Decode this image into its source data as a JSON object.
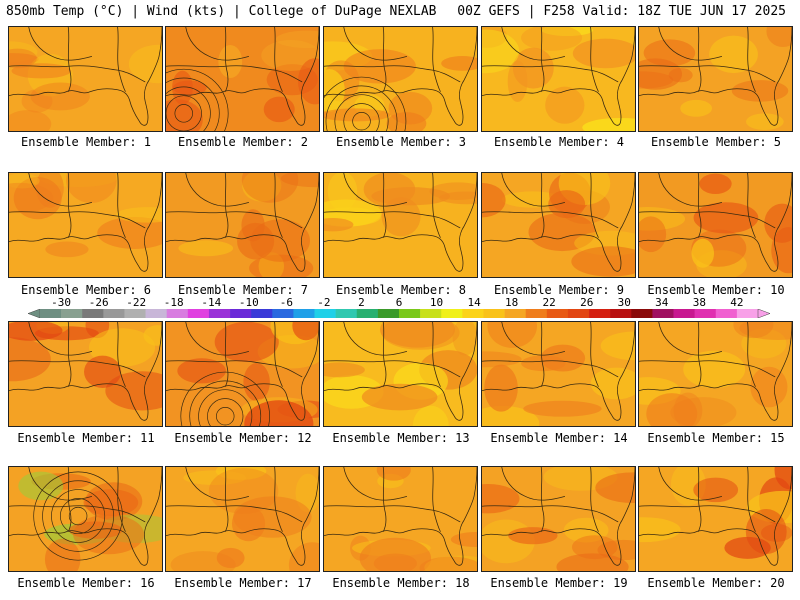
{
  "header": {
    "left": "850mb Temp (°C) | Wind (kts) | College of DuPage NEXLAB",
    "right": "00Z GEFS | F258 Valid: 18Z TUE JUN 17 2025"
  },
  "caption_prefix": "Ensemble Member: ",
  "members": [
    {
      "n": "1",
      "base": "#f5a623",
      "hot": "#ef7d1c",
      "alt": "#f9c21a"
    },
    {
      "n": "2",
      "base": "#f08a1e",
      "hot": "#e85a14",
      "alt": "#f5a623",
      "low": true
    },
    {
      "n": "3",
      "base": "#f7b21f",
      "hot": "#ef7d1c",
      "alt": "#fbd31a",
      "low": true
    },
    {
      "n": "4",
      "base": "#f8b81f",
      "hot": "#f29320",
      "alt": "#fbe41a"
    },
    {
      "n": "5",
      "base": "#f4a224",
      "hot": "#ea6a16",
      "alt": "#f9c21a"
    },
    {
      "n": "6",
      "base": "#f6a922",
      "hot": "#ef7d1c",
      "alt": "#f9c21a"
    },
    {
      "n": "7",
      "base": "#f29a22",
      "hot": "#ea6a16",
      "alt": "#f9c21a"
    },
    {
      "n": "8",
      "base": "#f7b21f",
      "hot": "#ef8a1e",
      "alt": "#fbd31a"
    },
    {
      "n": "9",
      "base": "#f5a623",
      "hot": "#ea6a16",
      "alt": "#f9c21a"
    },
    {
      "n": "10",
      "base": "#f29a22",
      "hot": "#e85a14",
      "alt": "#f9c21a"
    },
    {
      "n": "11",
      "base": "#f4a224",
      "hot": "#e24612",
      "alt": "#f9c21a"
    },
    {
      "n": "12",
      "base": "#f29322",
      "hot": "#e24612",
      "alt": "#f9c21a",
      "low": true
    },
    {
      "n": "13",
      "base": "#f8bb1f",
      "hot": "#ef8a1e",
      "alt": "#fbe41a"
    },
    {
      "n": "14",
      "base": "#f5a623",
      "hot": "#ef7d1c",
      "alt": "#f9c21a"
    },
    {
      "n": "15",
      "base": "#f5a623",
      "hot": "#ef7d1c",
      "alt": "#f9c21a"
    },
    {
      "n": "16",
      "base": "#f4a224",
      "hot": "#ea6a16",
      "alt": "#9ccc3a",
      "low": true
    },
    {
      "n": "17",
      "base": "#f5a623",
      "hot": "#ef7d1c",
      "alt": "#f9c21a"
    },
    {
      "n": "18",
      "base": "#f5a623",
      "hot": "#ef7d1c",
      "alt": "#f9c21a"
    },
    {
      "n": "19",
      "base": "#f4a224",
      "hot": "#ea6a16",
      "alt": "#f9c21a"
    },
    {
      "n": "20",
      "base": "#f5a623",
      "hot": "#e24612",
      "alt": "#f9c21a"
    }
  ],
  "colorbar": {
    "labels": [
      "-30",
      "-26",
      "-22",
      "-18",
      "-14",
      "-10",
      "-6",
      "-2",
      "2",
      "6",
      "10",
      "14",
      "18",
      "22",
      "26",
      "30",
      "34",
      "38",
      "42"
    ],
    "colors": [
      "#6e8f82",
      "#88a090",
      "#7a7a7a",
      "#999999",
      "#b0b0b0",
      "#c8b6d8",
      "#d87ce0",
      "#e040e0",
      "#9a32d8",
      "#6a2ad8",
      "#3a3ad8",
      "#2a6ae0",
      "#20a0e8",
      "#20d0e8",
      "#30c8b0",
      "#28b070",
      "#3a9a2a",
      "#7ac81a",
      "#c8e01a",
      "#f0f01a",
      "#fbd31a",
      "#f9c21a",
      "#f5a623",
      "#ef7d1c",
      "#e85a14",
      "#e24612",
      "#d42010",
      "#b81010",
      "#8a0a0a",
      "#a01060",
      "#c81890",
      "#e030b0",
      "#f060d0",
      "#f8a0e8"
    ]
  }
}
